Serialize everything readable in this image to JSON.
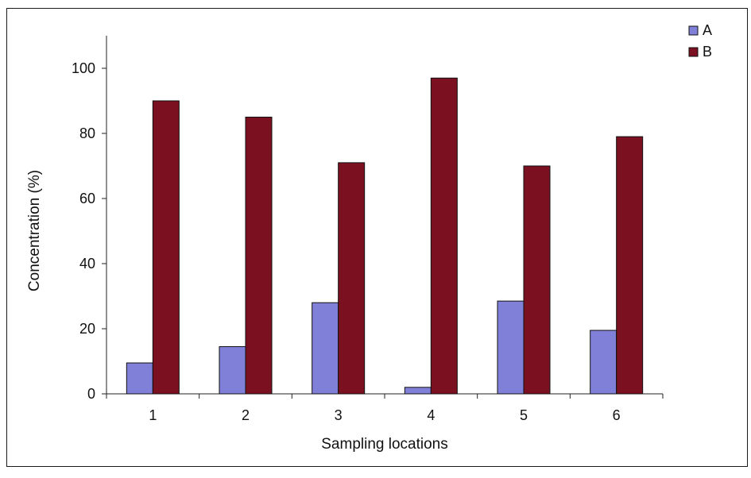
{
  "chart_data": {
    "type": "bar",
    "title": "",
    "xlabel": "Sampling locations",
    "ylabel": "Concentration (%)",
    "categories": [
      "1",
      "2",
      "3",
      "4",
      "5",
      "6"
    ],
    "series": [
      {
        "name": "A",
        "values": [
          9.5,
          14.5,
          28,
          2,
          28.5,
          19.5
        ],
        "color": "#8080d8"
      },
      {
        "name": "B",
        "values": [
          90,
          85,
          71,
          97,
          70,
          79
        ],
        "color": "#7b1020"
      }
    ],
    "ylim": [
      0,
      110
    ],
    "yticks": [
      0,
      20,
      40,
      60,
      80,
      100
    ],
    "grid": false,
    "legend_position": "top-right"
  }
}
